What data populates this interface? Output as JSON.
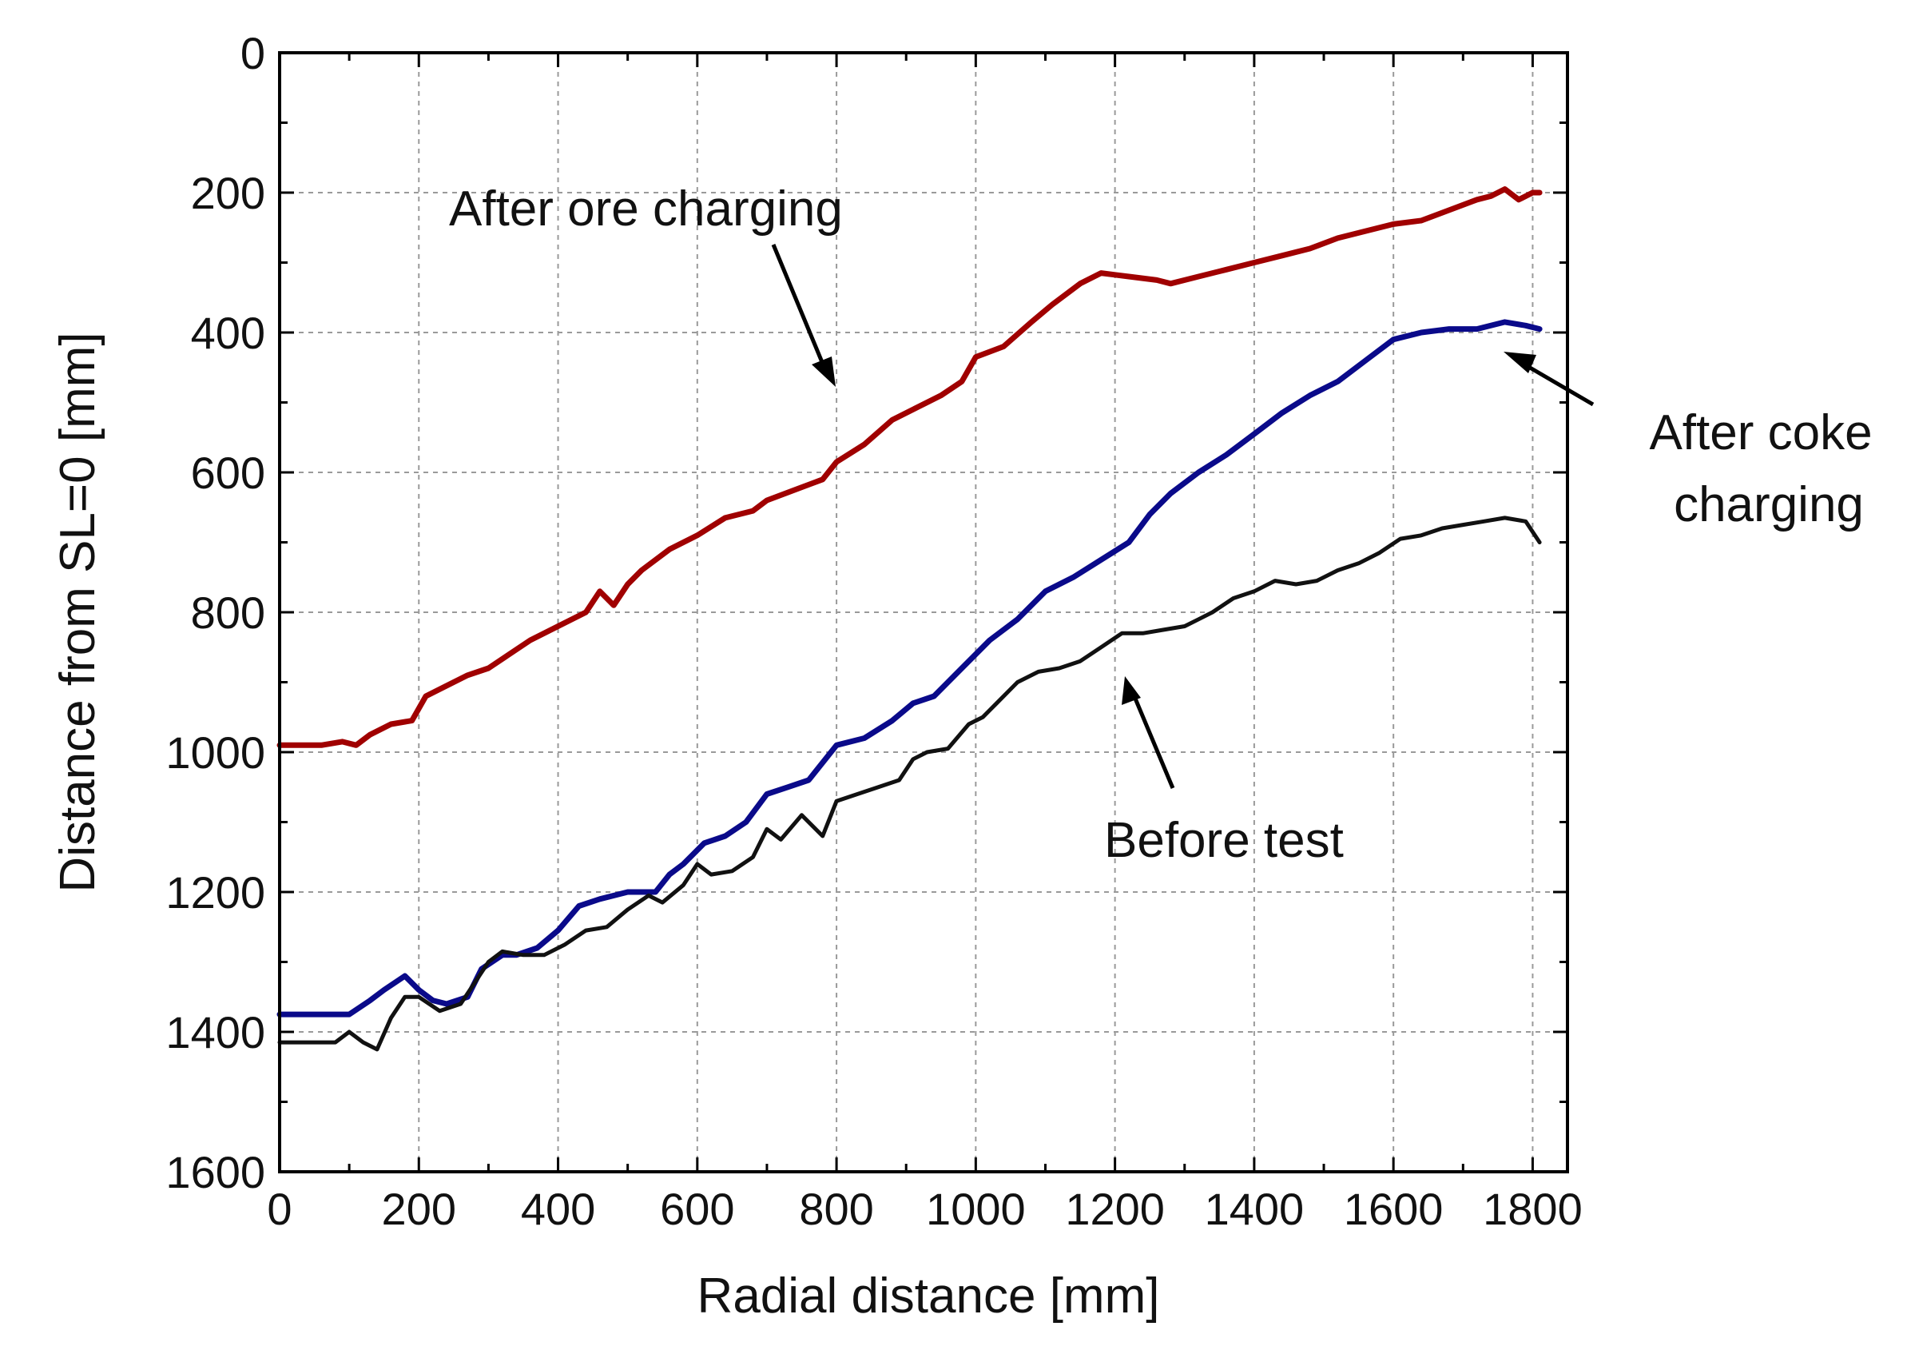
{
  "chart_data": {
    "type": "line",
    "title": "",
    "xlabel": "Radial distance  [mm]",
    "ylabel": "Distance from SL=0  [mm]",
    "xlim": [
      0,
      1850
    ],
    "ylim": [
      0,
      1600
    ],
    "y_inverted": true,
    "grid": true,
    "x_ticks": [
      "0",
      "200",
      "400",
      "600",
      "800",
      "1000",
      "1200",
      "1400",
      "1600",
      "1800"
    ],
    "y_ticks": [
      "0",
      "200",
      "400",
      "600",
      "800",
      "1000",
      "1200",
      "1400",
      "1600"
    ],
    "series": [
      {
        "name": "After ore charging",
        "color": "#a00000",
        "x": [
          0,
          60,
          90,
          110,
          130,
          160,
          190,
          210,
          240,
          270,
          300,
          330,
          360,
          400,
          440,
          460,
          480,
          500,
          520,
          560,
          600,
          640,
          680,
          700,
          740,
          780,
          800,
          840,
          880,
          920,
          950,
          980,
          1000,
          1040,
          1080,
          1110,
          1150,
          1180,
          1220,
          1260,
          1280,
          1320,
          1360,
          1400,
          1440,
          1480,
          1520,
          1560,
          1600,
          1640,
          1680,
          1720,
          1740,
          1760,
          1780,
          1800,
          1810
        ],
        "y": [
          990,
          990,
          985,
          990,
          975,
          960,
          955,
          920,
          905,
          890,
          880,
          860,
          840,
          820,
          800,
          770,
          790,
          760,
          740,
          710,
          690,
          665,
          655,
          640,
          625,
          610,
          585,
          560,
          525,
          505,
          490,
          470,
          435,
          420,
          385,
          360,
          330,
          315,
          320,
          325,
          330,
          320,
          310,
          300,
          290,
          280,
          265,
          255,
          245,
          240,
          225,
          210,
          205,
          195,
          210,
          200,
          200
        ]
      },
      {
        "name": "After coke charging",
        "color": "#0a0a8a",
        "x": [
          0,
          50,
          100,
          130,
          150,
          180,
          200,
          220,
          240,
          270,
          290,
          320,
          340,
          370,
          400,
          430,
          460,
          500,
          540,
          560,
          580,
          610,
          640,
          670,
          700,
          730,
          760,
          800,
          840,
          880,
          910,
          940,
          980,
          1020,
          1060,
          1100,
          1140,
          1180,
          1220,
          1250,
          1280,
          1320,
          1360,
          1400,
          1440,
          1480,
          1520,
          1560,
          1600,
          1640,
          1680,
          1720,
          1760,
          1790,
          1810
        ],
        "y": [
          1375,
          1375,
          1375,
          1355,
          1340,
          1320,
          1340,
          1355,
          1360,
          1350,
          1310,
          1290,
          1290,
          1280,
          1255,
          1220,
          1210,
          1200,
          1200,
          1175,
          1160,
          1130,
          1120,
          1100,
          1060,
          1050,
          1040,
          990,
          980,
          955,
          930,
          920,
          880,
          840,
          810,
          770,
          750,
          725,
          700,
          660,
          630,
          600,
          575,
          545,
          515,
          490,
          470,
          440,
          410,
          400,
          395,
          395,
          385,
          390,
          395
        ]
      },
      {
        "name": "Before test",
        "color": "#111111",
        "x": [
          0,
          80,
          100,
          120,
          140,
          160,
          180,
          200,
          230,
          260,
          280,
          300,
          320,
          350,
          380,
          410,
          440,
          470,
          500,
          530,
          550,
          580,
          600,
          620,
          650,
          680,
          700,
          720,
          750,
          780,
          800,
          830,
          860,
          890,
          910,
          930,
          960,
          990,
          1010,
          1030,
          1060,
          1090,
          1120,
          1150,
          1180,
          1210,
          1240,
          1270,
          1300,
          1320,
          1340,
          1370,
          1400,
          1430,
          1460,
          1490,
          1520,
          1550,
          1580,
          1610,
          1640,
          1670,
          1700,
          1730,
          1760,
          1790,
          1810
        ],
        "y": [
          1415,
          1415,
          1400,
          1415,
          1425,
          1380,
          1350,
          1350,
          1370,
          1360,
          1330,
          1300,
          1285,
          1290,
          1290,
          1275,
          1255,
          1250,
          1225,
          1205,
          1215,
          1190,
          1160,
          1175,
          1170,
          1150,
          1110,
          1125,
          1090,
          1120,
          1070,
          1060,
          1050,
          1040,
          1010,
          1000,
          995,
          960,
          950,
          930,
          900,
          885,
          880,
          870,
          850,
          830,
          830,
          825,
          820,
          810,
          800,
          780,
          770,
          755,
          760,
          755,
          740,
          730,
          715,
          695,
          690,
          680,
          675,
          670,
          665,
          670,
          700
        ]
      }
    ],
    "annotations": [
      {
        "text": "After ore charging",
        "target_series": "After ore charging"
      },
      {
        "text": "After coke",
        "text2": "charging",
        "target_series": "After coke charging"
      },
      {
        "text": "Before test",
        "target_series": "Before test"
      }
    ]
  }
}
